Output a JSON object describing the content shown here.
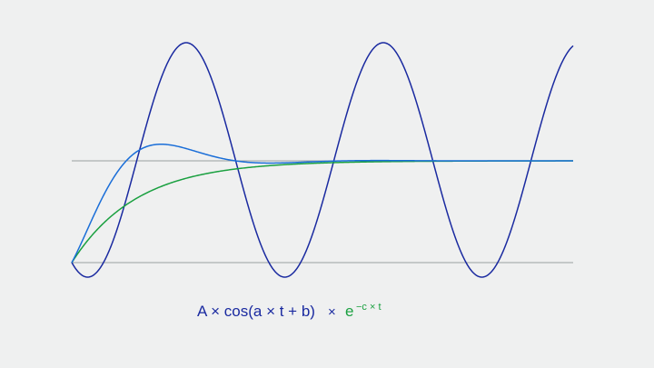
{
  "formula": {
    "wave": "A × cos(a × t + b)",
    "operator": "×",
    "base": "e",
    "exponent": "−c × t"
  }
}
